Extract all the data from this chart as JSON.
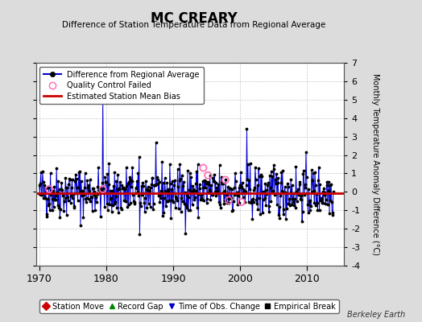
{
  "title": "MC CREARY",
  "subtitle": "Difference of Station Temperature Data from Regional Average",
  "ylabel_right": "Monthly Temperature Anomaly Difference (°C)",
  "bg_color": "#dcdcdc",
  "plot_bg_color": "#ffffff",
  "line_color": "#0000cc",
  "dot_color": "#000000",
  "bias_color": "#cc0000",
  "bias_value": -0.05,
  "ylim": [
    -4,
    7
  ],
  "xlim": [
    1969.5,
    2015.5
  ],
  "yticks": [
    -4,
    -3,
    -2,
    -1,
    0,
    1,
    2,
    3,
    4,
    5,
    6,
    7
  ],
  "xticks": [
    1970,
    1980,
    1990,
    2000,
    2010
  ],
  "qc_failed_times": [
    1971.5,
    1979.5,
    1994.5,
    1995.2,
    1997.8,
    1998.3,
    2000.2
  ],
  "qc_failed_values": [
    0.15,
    0.15,
    1.3,
    0.9,
    0.65,
    -0.45,
    -0.55
  ],
  "seed": 42,
  "n_months": 528,
  "start_year": 1970,
  "berkeley_earth_text": "Berkeley Earth"
}
